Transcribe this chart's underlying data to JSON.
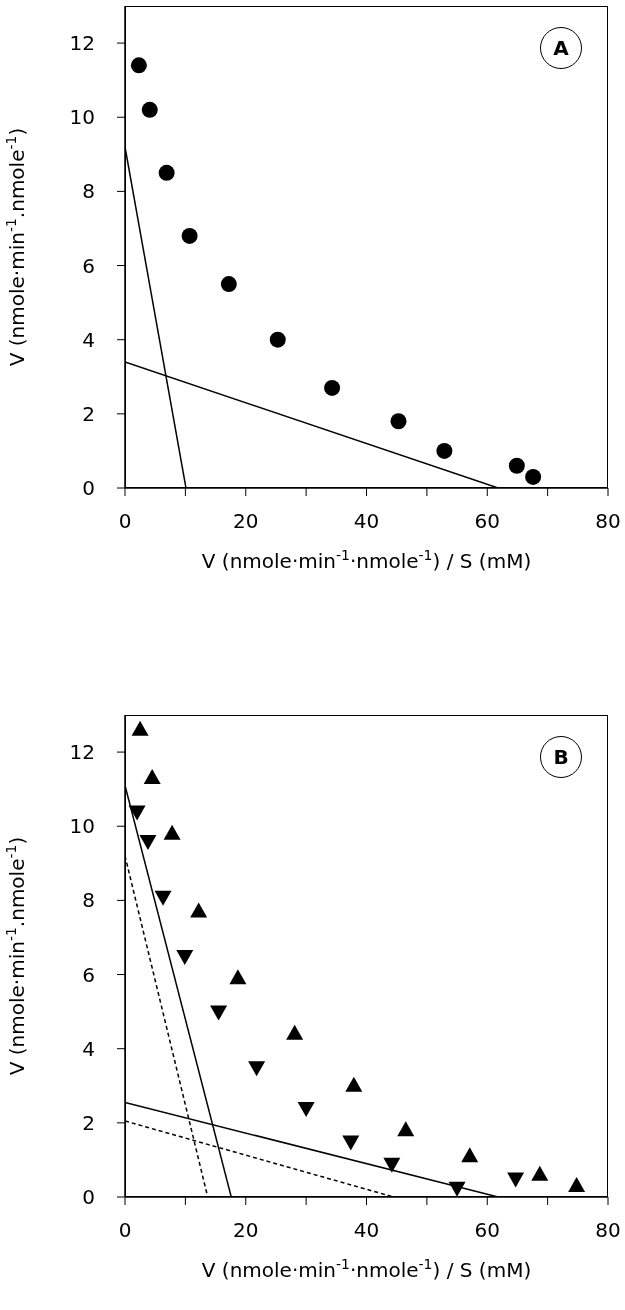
{
  "chart_data": [
    {
      "type": "scatter",
      "annotations": [
        "A"
      ],
      "xlabel": "V (nmole·min$^{-1}$·nmole$^{-1}$) / S (mM)",
      "ylabel": "V  (nmole·min$^{-1}$.nmole$^{-1}$)",
      "xlim": [
        0,
        80
      ],
      "ylim": [
        0,
        13
      ],
      "xticks": [
        0,
        {
          "value": 10,
          "label": null
        },
        20,
        {
          "value": 30,
          "label": null
        },
        40,
        {
          "value": 50,
          "label": null
        },
        60,
        {
          "value": 70,
          "label": null
        },
        80
      ],
      "yticks": [
        0,
        2,
        4,
        6,
        8,
        10,
        12
      ],
      "series": [
        {
          "type": "scatter",
          "marker": "circle",
          "color": "#000000",
          "x": [
            2.3,
            4.1,
            6.9,
            10.7,
            17.2,
            25.3,
            34.3,
            45.3,
            52.9,
            64.9,
            67.6
          ],
          "values": [
            11.4,
            10.2,
            8.5,
            6.8,
            5.5,
            4.0,
            2.7,
            1.8,
            1.0,
            0.6,
            0.3
          ]
        },
        {
          "type": "line",
          "line_style": "solid",
          "color": "#000000",
          "x": [
            0,
            10.1
          ],
          "values": [
            9.2,
            0
          ]
        },
        {
          "type": "line",
          "line_style": "solid",
          "color": "#000000",
          "x": [
            0,
            61.8
          ],
          "values": [
            3.4,
            0
          ]
        }
      ]
    },
    {
      "type": "scatter",
      "annotations": [
        "B"
      ],
      "xlabel": "V (nmole·min$^{-1}$·nmole$^{-1}$) / S (mM)",
      "ylabel": "V (nmole·min$^{-1}$.nmole$^{-1}$)",
      "xlim": [
        0,
        80
      ],
      "ylim": [
        0,
        13
      ],
      "xticks": [
        0,
        {
          "value": 10,
          "label": null
        },
        20,
        {
          "value": 30,
          "label": null
        },
        40,
        {
          "value": 50,
          "label": null
        },
        60,
        {
          "value": 70,
          "label": null
        },
        80
      ],
      "yticks": [
        0,
        2,
        4,
        6,
        8,
        10,
        12
      ],
      "series": [
        {
          "type": "scatter",
          "marker": "triangle",
          "color": "#000000",
          "x": [
            2.5,
            4.5,
            7.8,
            12.2,
            18.7,
            28.1,
            37.9,
            46.5,
            57.1,
            68.7,
            74.8
          ],
          "values": [
            12.6,
            11.3,
            9.8,
            7.7,
            5.9,
            4.4,
            3.0,
            1.8,
            1.1,
            0.6,
            0.3
          ]
        },
        {
          "type": "scatter",
          "marker": "triangle-down",
          "color": "#000000",
          "x": [
            2.0,
            3.8,
            6.3,
            9.9,
            15.5,
            21.8,
            30.0,
            37.4,
            44.2,
            55.0,
            64.7
          ],
          "values": [
            10.4,
            9.6,
            8.1,
            6.5,
            5.0,
            3.5,
            2.4,
            1.5,
            0.9,
            0.25,
            0.5
          ]
        },
        {
          "type": "line",
          "line_style": "solid",
          "color": "#000000",
          "x": [
            0,
            17.6
          ],
          "values": [
            11.1,
            0
          ]
        },
        {
          "type": "line",
          "line_style": "solid",
          "color": "#000000",
          "x": [
            0,
            61.8
          ],
          "values": [
            2.55,
            0
          ]
        },
        {
          "type": "line",
          "line_style": "dashed",
          "color": "#000000",
          "x": [
            0,
            13.7
          ],
          "values": [
            9.2,
            0
          ]
        },
        {
          "type": "line",
          "line_style": "dashed",
          "color": "#000000",
          "x": [
            0,
            44.5
          ],
          "values": [
            2.05,
            0
          ]
        }
      ]
    }
  ]
}
